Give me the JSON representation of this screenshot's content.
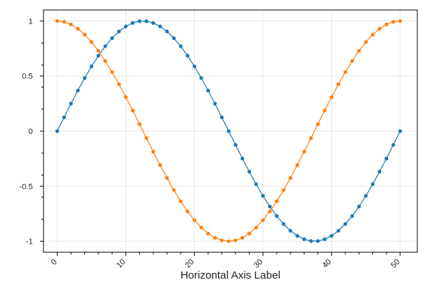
{
  "chart_data": {
    "type": "line",
    "title": "",
    "xlabel": "Horizontal Axis Label",
    "ylabel": "",
    "xlim": [
      -2,
      52.5
    ],
    "ylim": [
      -1.1,
      1.1
    ],
    "x_ticks": [
      0,
      10,
      20,
      30,
      40,
      50
    ],
    "x_tick_labels": [
      "0",
      "10",
      "20",
      "30",
      "40",
      "50"
    ],
    "y_ticks": [
      1,
      0.5,
      0,
      -0.5,
      -1
    ],
    "y_tick_labels": [
      "1",
      "0.5",
      "0",
      "-0.5",
      "-1"
    ],
    "grid": true,
    "x": [
      0,
      1,
      2,
      3,
      4,
      5,
      6,
      7,
      8,
      9,
      10,
      11,
      12,
      13,
      14,
      15,
      16,
      17,
      18,
      19,
      20,
      21,
      22,
      23,
      24,
      25,
      26,
      27,
      28,
      29,
      30,
      31,
      32,
      33,
      34,
      35,
      36,
      37,
      38,
      39,
      40,
      41,
      42,
      43,
      44,
      45,
      46,
      47,
      48,
      49,
      50
    ],
    "series": [
      {
        "color": "#1f77b4",
        "values": [
          0,
          0.125,
          0.249,
          0.368,
          0.482,
          0.588,
          0.685,
          0.771,
          0.844,
          0.905,
          0.951,
          0.982,
          0.998,
          0.998,
          0.982,
          0.951,
          0.905,
          0.844,
          0.771,
          0.685,
          0.588,
          0.482,
          0.368,
          0.249,
          0.125,
          0,
          -0.125,
          -0.249,
          -0.368,
          -0.482,
          -0.588,
          -0.685,
          -0.771,
          -0.844,
          -0.905,
          -0.951,
          -0.982,
          -0.998,
          -0.998,
          -0.982,
          -0.951,
          -0.905,
          -0.844,
          -0.771,
          -0.685,
          -0.588,
          -0.482,
          -0.368,
          -0.249,
          -0.125,
          0
        ]
      },
      {
        "color": "#ff7f0e",
        "values": [
          1,
          0.992,
          0.969,
          0.93,
          0.876,
          0.809,
          0.729,
          0.637,
          0.536,
          0.426,
          0.309,
          0.187,
          0.063,
          -0.063,
          -0.187,
          -0.309,
          -0.426,
          -0.536,
          -0.637,
          -0.729,
          -0.809,
          -0.876,
          -0.93,
          -0.969,
          -0.992,
          -1,
          -0.992,
          -0.969,
          -0.93,
          -0.876,
          -0.809,
          -0.729,
          -0.637,
          -0.536,
          -0.426,
          -0.309,
          -0.187,
          -0.063,
          0.063,
          0.187,
          0.309,
          0.426,
          0.536,
          0.637,
          0.729,
          0.809,
          0.876,
          0.93,
          0.969,
          0.992,
          1
        ]
      }
    ]
  }
}
